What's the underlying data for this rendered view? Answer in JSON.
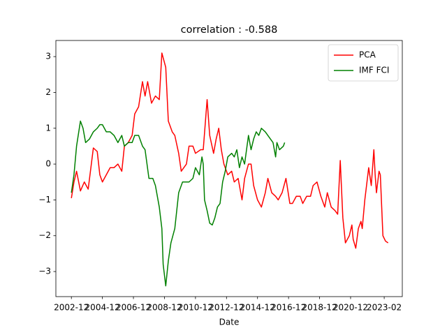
{
  "chart_data": {
    "type": "line",
    "title": "correlation : -0.588",
    "x_label": "Date",
    "xlim": [
      "2001-12",
      "2024-04"
    ],
    "xticks": [
      "2002-12",
      "2004-12",
      "2006-12",
      "2008-12",
      "2010-12",
      "2012-12",
      "2014-12",
      "2016-12",
      "2018-12",
      "2020-12",
      "2023-02"
    ],
    "ylim": [
      -3.7,
      3.45
    ],
    "yticks": [
      {
        "value": -3,
        "label": "−3"
      },
      {
        "value": -2,
        "label": "−2"
      },
      {
        "value": -1,
        "label": "−1"
      },
      0,
      1,
      2,
      3
    ],
    "legend": "upper right",
    "series": [
      {
        "name": "PCA",
        "color": "#ff0000",
        "x": [
          "2002-12",
          "2003-02",
          "2003-04",
          "2003-07",
          "2003-10",
          "2004-01",
          "2004-05",
          "2004-08",
          "2004-10",
          "2004-12",
          "2005-03",
          "2005-06",
          "2005-09",
          "2005-12",
          "2006-03",
          "2006-05",
          "2006-08",
          "2006-11",
          "2007-01",
          "2007-04",
          "2007-07",
          "2007-09",
          "2007-11",
          "2008-02",
          "2008-05",
          "2008-08",
          "2008-10",
          "2009-01",
          "2009-03",
          "2009-06",
          "2009-08",
          "2009-11",
          "2010-01",
          "2010-03",
          "2010-05",
          "2010-07",
          "2010-10",
          "2010-12",
          "2011-04",
          "2011-06",
          "2011-09",
          "2011-11",
          "2012-02",
          "2012-04",
          "2012-06",
          "2012-08",
          "2012-10",
          "2013-01",
          "2013-04",
          "2013-06",
          "2013-09",
          "2013-12",
          "2014-02",
          "2014-05",
          "2014-07",
          "2014-09",
          "2014-12",
          "2015-03",
          "2015-06",
          "2015-08",
          "2015-11",
          "2016-02",
          "2016-04",
          "2016-07",
          "2016-10",
          "2017-01",
          "2017-03",
          "2017-06",
          "2017-09",
          "2017-11",
          "2018-02",
          "2018-05",
          "2018-07",
          "2018-10",
          "2019-01",
          "2019-04",
          "2019-06",
          "2019-09",
          "2019-12",
          "2020-02",
          "2020-04",
          "2020-06",
          "2020-08",
          "2020-11",
          "2021-01",
          "2021-02",
          "2021-04",
          "2021-06",
          "2021-08",
          "2021-09",
          "2021-11",
          "2022-01",
          "2022-02",
          "2022-04",
          "2022-06",
          "2022-07",
          "2022-08",
          "2022-10",
          "2022-11",
          "2023-01",
          "2023-03",
          "2023-05"
        ],
        "values": [
          -0.95,
          -0.5,
          -0.2,
          -0.75,
          -0.5,
          -0.7,
          0.45,
          0.35,
          -0.3,
          -0.5,
          -0.3,
          -0.1,
          -0.1,
          0.0,
          -0.2,
          0.5,
          0.6,
          0.8,
          1.4,
          1.6,
          2.3,
          1.9,
          2.3,
          1.7,
          1.9,
          1.8,
          3.1,
          2.7,
          1.2,
          0.9,
          0.8,
          0.3,
          -0.2,
          -0.1,
          0.0,
          0.5,
          0.5,
          0.3,
          0.4,
          0.4,
          1.8,
          0.8,
          0.3,
          0.7,
          1.0,
          0.4,
          0.0,
          -0.3,
          -0.2,
          -0.5,
          -0.4,
          -1.0,
          -0.4,
          0.0,
          0.0,
          -0.6,
          -1.0,
          -1.2,
          -0.8,
          -0.4,
          -0.8,
          -0.9,
          -1.0,
          -0.8,
          -0.4,
          -1.1,
          -1.1,
          -0.9,
          -0.9,
          -1.1,
          -0.9,
          -0.9,
          -0.6,
          -0.5,
          -0.9,
          -1.2,
          -0.8,
          -1.2,
          -1.3,
          -1.4,
          0.1,
          -1.5,
          -2.2,
          -2.0,
          -1.7,
          -2.1,
          -2.35,
          -1.8,
          -1.6,
          -1.8,
          -1.0,
          -0.4,
          -0.1,
          -0.6,
          0.4,
          -0.3,
          -0.8,
          -0.2,
          -0.3,
          -2.0,
          -2.15,
          -2.2
        ]
      },
      {
        "name": "IMF FCI",
        "color": "#008000",
        "x": [
          "2002-12",
          "2003-02",
          "2003-04",
          "2003-07",
          "2003-09",
          "2003-11",
          "2004-02",
          "2004-05",
          "2004-08",
          "2004-10",
          "2004-12",
          "2005-03",
          "2005-06",
          "2005-09",
          "2005-12",
          "2006-03",
          "2006-05",
          "2006-08",
          "2006-11",
          "2007-01",
          "2007-04",
          "2007-07",
          "2007-09",
          "2007-12",
          "2008-03",
          "2008-05",
          "2008-08",
          "2008-10",
          "2008-11",
          "2009-01",
          "2009-03",
          "2009-05",
          "2009-08",
          "2009-11",
          "2010-02",
          "2010-04",
          "2010-07",
          "2010-10",
          "2010-12",
          "2011-03",
          "2011-05",
          "2011-06",
          "2011-07",
          "2011-09",
          "2011-11",
          "2012-01",
          "2012-03",
          "2012-05",
          "2012-07",
          "2012-09",
          "2012-11",
          "2013-01",
          "2013-04",
          "2013-06",
          "2013-08",
          "2013-10",
          "2013-12",
          "2014-02",
          "2014-05",
          "2014-07",
          "2014-09",
          "2014-11",
          "2015-01",
          "2015-03",
          "2015-06",
          "2015-08",
          "2015-10",
          "2015-12",
          "2016-02",
          "2016-03",
          "2016-05",
          "2016-08",
          "2016-09"
        ],
        "values": [
          -0.8,
          -0.3,
          0.5,
          1.2,
          1.0,
          0.6,
          0.7,
          0.9,
          1.0,
          1.1,
          1.1,
          0.9,
          0.9,
          0.8,
          0.6,
          0.8,
          0.5,
          0.6,
          0.6,
          0.8,
          0.8,
          0.5,
          0.4,
          -0.4,
          -0.4,
          -0.6,
          -1.2,
          -1.8,
          -2.8,
          -3.4,
          -2.7,
          -2.2,
          -1.8,
          -0.8,
          -0.5,
          -0.5,
          -0.5,
          -0.4,
          -0.1,
          -0.3,
          0.2,
          0.0,
          -1.0,
          -1.3,
          -1.65,
          -1.7,
          -1.5,
          -1.2,
          -1.1,
          -0.5,
          -0.2,
          0.2,
          0.3,
          0.2,
          0.4,
          -0.1,
          0.2,
          0.0,
          0.8,
          0.4,
          0.7,
          0.9,
          0.8,
          1.0,
          0.9,
          0.8,
          0.7,
          0.6,
          0.2,
          0.6,
          0.4,
          0.5,
          0.6
        ]
      }
    ]
  }
}
